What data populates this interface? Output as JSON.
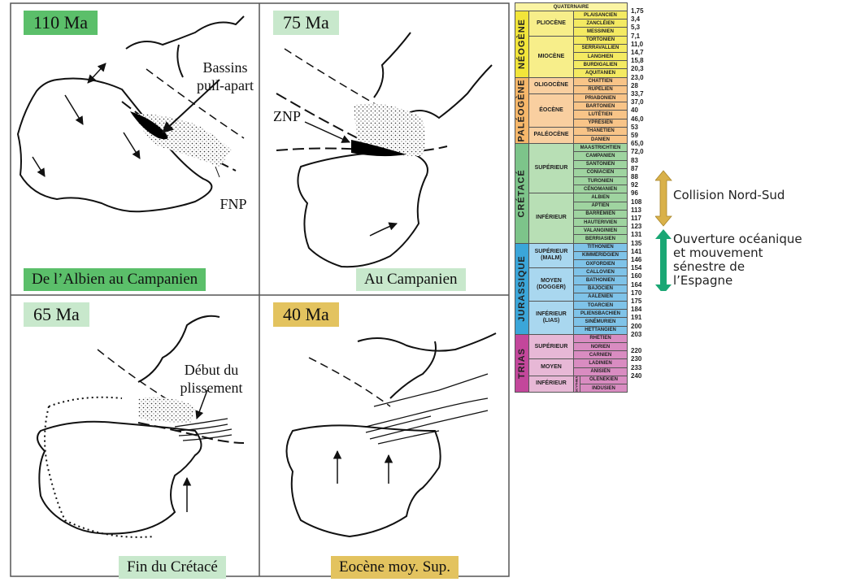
{
  "colors": {
    "frame": "#555555",
    "panel_green_dark": "#5bbf6a",
    "panel_green_light": "#c8e8cc",
    "panel_gold": "#e3c35f",
    "arrow_gold": "#d9b14a",
    "arrow_green": "#1aa774",
    "quaternaire": "#fbf4a3",
    "neogene": "#f2e53a",
    "paleogene": "#f6b76a",
    "paleogene_light": "#f9cfa0",
    "cretace": "#7dc48a",
    "cretace_light": "#b8dfb5",
    "jurassique": "#3ba6d9",
    "jurassique_light": "#a9d7ef",
    "trias": "#c3479b",
    "trias_light": "#e7b8d6"
  },
  "panels": [
    {
      "id": "p1",
      "title": "110 Ma",
      "caption": "De l’Albien au Campanien",
      "title_color": "#5bbf6a",
      "caption_color": "#5bbf6a"
    },
    {
      "id": "p2",
      "title": "75 Ma",
      "caption": "Au Campanien",
      "title_color": "#c8e8cc",
      "caption_color": "#c8e8cc"
    },
    {
      "id": "p3",
      "title": "65 Ma",
      "caption": "Fin du Crétacé",
      "title_color": "#c8e8cc",
      "caption_color": "#c8e8cc"
    },
    {
      "id": "p4",
      "title": "40 Ma",
      "caption": "Eocène moy. Sup.",
      "title_color": "#e3c35f",
      "caption_color": "#e3c35f"
    }
  ],
  "map_labels": {
    "bassins_1": "Bassins",
    "bassins_2": "pull-apart",
    "fnp": "FNP",
    "znp": "ZNP",
    "debut_1": "Début du",
    "debut_2": "plissement"
  },
  "stratigraphy": {
    "eras": [
      {
        "name": "QUATERNAIRE",
        "color": "#fbf4a3"
      },
      {
        "name": "NÉOGÈNE",
        "color": "#f2e53a"
      },
      {
        "name": "PALÉOGÈNE",
        "color": "#f6b76a"
      },
      {
        "name": "CRÉTACÉ",
        "color": "#7dc48a"
      },
      {
        "name": "JURASSIQUE",
        "color": "#3ba6d9"
      },
      {
        "name": "TRIAS",
        "color": "#c3479b"
      }
    ],
    "epochs": [
      {
        "name": "PLIOCÈNE",
        "era": 1
      },
      {
        "name": "MIOCÈNE",
        "era": 1
      },
      {
        "name": "OLIGOCÈNE",
        "era": 2
      },
      {
        "name": "ÉOCÈNE",
        "era": 2
      },
      {
        "name": "PALÉOCÈNE",
        "era": 2
      },
      {
        "name": "SUPÉRIEUR",
        "era": 3
      },
      {
        "name": "INFÉRIEUR",
        "era": 3
      },
      {
        "name": "SUPÉRIEUR (MALM)",
        "era": 4
      },
      {
        "name": "MOYEN (DOGGER)",
        "era": 4
      },
      {
        "name": "INFÉRIEUR (LIAS)",
        "era": 4
      },
      {
        "name": "SUPÉRIEUR",
        "era": 5
      },
      {
        "name": "MOYEN",
        "era": 5
      },
      {
        "name": "INFÉRIEUR",
        "era": 5
      }
    ],
    "stages": [
      "PLAISANCIEN",
      "ZANCLÉIEN",
      "MESSINIEN",
      "TORTONIEN",
      "SERRAVALLIEN",
      "LANGHIEN",
      "BURDIGALIEN",
      "AQUITANIEN",
      "CHATTIEN",
      "RUPÉLIEN",
      "PRIABONIEN",
      "BARTONIEN",
      "LUTÉTIEN",
      "YPRÉSIEN",
      "THANÉTIEN",
      "DANIEN",
      "MAASTRICHTIEN",
      "CAMPANIEN",
      "SANTONIEN",
      "CONIACIEN",
      "TURONIEN",
      "CÉNOMANIEN",
      "ALBIEN",
      "APTIEN",
      "BARRÉMIEN",
      "HAUTERIVIEN",
      "VALANGINIEN",
      "BERRIASIEN",
      "TITHONIEN",
      "KIMMÉRIDGIEN",
      "OXFORDIEN",
      "CALLOVIEN",
      "BATHONIEN",
      "BAJOCIEN",
      "AALÉNIEN",
      "TOARCIEN",
      "PLIENSBACHIEN",
      "SINÉMURIEN",
      "HETTANGIEN",
      "RHÉTIEN",
      "NORIEN",
      "CARNIEN",
      "LADINIEN",
      "ANISIEN",
      "OLENEKIEN",
      "INDUSIEN"
    ],
    "scythien": "SCYTHIEN",
    "ages": [
      "1,75",
      "3,4",
      "5,3",
      "7,1",
      "11,0",
      "14,7",
      "15,8",
      "20,3",
      "23,0",
      "28",
      "33,7",
      "37,0",
      "40",
      "46,0",
      "53",
      "59",
      "65,0",
      "72,0",
      "83",
      "87",
      "88",
      "92",
      "96",
      "108",
      "113",
      "117",
      "123",
      "131",
      "135",
      "141",
      "146",
      "154",
      "160",
      "164",
      "170",
      "175",
      "184",
      "191",
      "200",
      "203",
      "220",
      "230",
      "233",
      "240"
    ]
  },
  "annotations": {
    "collision": "Collision Nord-Sud",
    "ouverture_1": "Ouverture océanique",
    "ouverture_2": "et mouvement",
    "ouverture_3": "sénestre de",
    "ouverture_4": "l’Espagne"
  }
}
